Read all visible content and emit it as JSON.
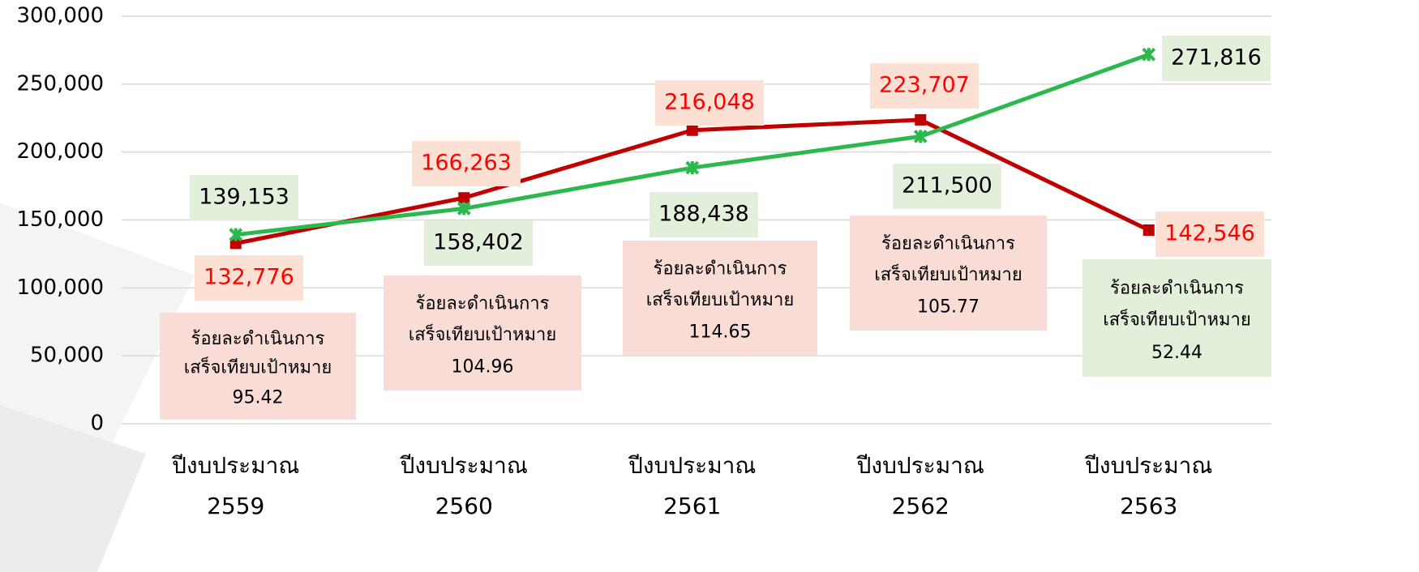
{
  "chart_data": {
    "type": "line",
    "categories": [
      "ปีงบประมาณ\n2559",
      "ปีงบประมาณ\n2560",
      "ปีงบประมาณ\n2561",
      "ปีงบประมาณ\n2562",
      "ปีงบประมาณ\n2563"
    ],
    "series": [
      {
        "color": "#c00000",
        "values": [
          132776,
          166263,
          216048,
          223707,
          142546
        ],
        "value_labels": [
          "132,776",
          "166,263",
          "216,048",
          "223,707",
          "142,546"
        ]
      },
      {
        "color": "#2db84d",
        "values": [
          139153,
          158402,
          188438,
          211500,
          271816
        ],
        "value_labels": [
          "139,153",
          "158,402",
          "188,438",
          "211,500",
          "271,816"
        ]
      }
    ],
    "ylim": [
      0,
      300000
    ],
    "yticks": [
      0,
      {
        "value": 50000,
        "label": "50,000"
      },
      {
        "value": 100000,
        "label": "100,000"
      },
      {
        "value": 150000,
        "label": "150,000"
      },
      {
        "value": 200000,
        "label": "200,000"
      },
      {
        "value": 250000,
        "label": "250,000"
      },
      {
        "value": 300000,
        "label": "300,000"
      }
    ],
    "grid": true,
    "annotations": [
      {
        "text": [
          "ร้อยละดำเนินการ",
          "เสร็จเทียบเป้าหมาย"
        ],
        "value": 95.42,
        "color": "#f9dcd5"
      },
      {
        "text": [
          "ร้อยละดำเนินการ",
          "เสร็จเทียบเป้าหมาย"
        ],
        "value": 104.96,
        "color": "#f9dcd5"
      },
      {
        "text": [
          "ร้อยละดำเนินการ",
          "เสร็จเทียบเป้าหมาย"
        ],
        "value": 114.65,
        "color": "#f9dcd5"
      },
      {
        "text": [
          "ร้อยละดำเนินการ",
          "เสร็จเทียบเป้าหมาย"
        ],
        "value": 105.77,
        "color": "#f9dcd5"
      },
      {
        "text": [
          "ร้อยละดำเนินการ",
          "เสร็จเทียบเป้าหมาย"
        ],
        "value": 52.44,
        "color": "#e2efda"
      }
    ]
  }
}
